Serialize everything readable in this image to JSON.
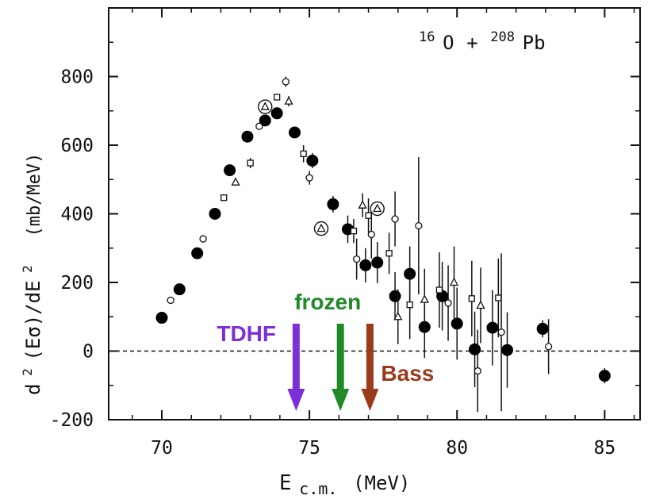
{
  "chart_data": {
    "type": "scatter",
    "title": "",
    "reaction": {
      "projectile_mass": "16",
      "projectile_symbol": "O",
      "operator": "+",
      "target_mass": "208",
      "target_symbol": "Pb"
    },
    "xlabel": {
      "main": "E",
      "subscript": "c.m.",
      "unit": "(MeV)"
    },
    "ylabel": {
      "main": "d",
      "sup1": "2",
      "mid": "(Eσ)/dE",
      "sup2": "2",
      "unit": "(mb/MeV)"
    },
    "xlim": [
      68.2,
      86.2
    ],
    "ylim": [
      -200,
      1000
    ],
    "xticks": [
      70,
      75,
      80,
      85
    ],
    "xtick_labels": [
      "70",
      "75",
      "80",
      "85"
    ],
    "yticks": [
      -200,
      0,
      200,
      400,
      600,
      800
    ],
    "ytick_labels": [
      "-200",
      "0",
      "200",
      "400",
      "600",
      "800"
    ],
    "zero_line": {
      "y": 0,
      "style": "dashed"
    },
    "series": [
      {
        "name": "filled circles",
        "marker": "filled-circle",
        "points": [
          {
            "x": 70.0,
            "y": 97,
            "err": 10
          },
          {
            "x": 70.6,
            "y": 180,
            "err": 10
          },
          {
            "x": 71.2,
            "y": 285,
            "err": 12
          },
          {
            "x": 71.8,
            "y": 400,
            "err": 12
          },
          {
            "x": 72.3,
            "y": 527,
            "err": 12
          },
          {
            "x": 72.9,
            "y": 625,
            "err": 14
          },
          {
            "x": 73.5,
            "y": 672,
            "err": 14
          },
          {
            "x": 73.9,
            "y": 693,
            "err": 14
          },
          {
            "x": 74.5,
            "y": 637,
            "err": 16
          },
          {
            "x": 75.1,
            "y": 555,
            "err": 22
          },
          {
            "x": 75.8,
            "y": 428,
            "err": 24
          },
          {
            "x": 76.3,
            "y": 355,
            "err": 40
          },
          {
            "x": 76.9,
            "y": 250,
            "err": 50
          },
          {
            "x": 77.3,
            "y": 258,
            "err": 60
          },
          {
            "x": 77.9,
            "y": 160,
            "err": 70
          },
          {
            "x": 78.4,
            "y": 225,
            "err": 80
          },
          {
            "x": 78.9,
            "y": 70,
            "err": 90
          },
          {
            "x": 79.5,
            "y": 160,
            "err": 100
          },
          {
            "x": 80.0,
            "y": 80,
            "err": 105
          },
          {
            "x": 80.6,
            "y": 5,
            "err": 110
          },
          {
            "x": 81.2,
            "y": 68,
            "err": 110
          },
          {
            "x": 81.7,
            "y": 3,
            "err": 110
          },
          {
            "x": 82.9,
            "y": 65,
            "err": 25
          },
          {
            "x": 85.0,
            "y": -72,
            "err": 22
          }
        ]
      },
      {
        "name": "open circles",
        "marker": "open-circle",
        "points": [
          {
            "x": 70.3,
            "y": 148,
            "err": 0
          },
          {
            "x": 71.4,
            "y": 327,
            "err": 0
          },
          {
            "x": 73.3,
            "y": 655,
            "err": 0
          },
          {
            "x": 74.2,
            "y": 785,
            "err": 15
          },
          {
            "x": 75.0,
            "y": 505,
            "err": 20
          },
          {
            "x": 76.6,
            "y": 268,
            "err": 60
          },
          {
            "x": 77.1,
            "y": 340,
            "err": 70
          },
          {
            "x": 77.9,
            "y": 385,
            "err": 80
          },
          {
            "x": 78.7,
            "y": 365,
            "err": 200
          },
          {
            "x": 79.7,
            "y": 140,
            "err": 110
          },
          {
            "x": 80.7,
            "y": -58,
            "err": 120
          },
          {
            "x": 81.5,
            "y": 55,
            "err": 230
          },
          {
            "x": 83.1,
            "y": 13,
            "err": 80
          }
        ]
      },
      {
        "name": "open squares",
        "marker": "open-square",
        "points": [
          {
            "x": 72.1,
            "y": 447,
            "err": 0
          },
          {
            "x": 73.0,
            "y": 548,
            "err": 15
          },
          {
            "x": 73.9,
            "y": 740,
            "err": 0
          },
          {
            "x": 74.8,
            "y": 575,
            "err": 25
          },
          {
            "x": 76.5,
            "y": 350,
            "err": 35
          },
          {
            "x": 77.0,
            "y": 395,
            "err": 50
          },
          {
            "x": 77.7,
            "y": 285,
            "err": 60
          },
          {
            "x": 78.4,
            "y": 135,
            "err": 100
          },
          {
            "x": 79.4,
            "y": 178,
            "err": 110
          },
          {
            "x": 80.5,
            "y": 153,
            "err": 110
          },
          {
            "x": 81.4,
            "y": 155,
            "err": 115
          }
        ]
      },
      {
        "name": "open triangles",
        "marker": "open-triangle",
        "points": [
          {
            "x": 72.5,
            "y": 492,
            "err": 0
          },
          {
            "x": 74.3,
            "y": 728,
            "err": 15
          },
          {
            "x": 76.8,
            "y": 425,
            "err": 35
          },
          {
            "x": 78.0,
            "y": 100,
            "err": 80
          },
          {
            "x": 78.9,
            "y": 150,
            "err": 90
          },
          {
            "x": 79.9,
            "y": 200,
            "err": 105
          },
          {
            "x": 80.8,
            "y": 133,
            "err": 110
          }
        ]
      },
      {
        "name": "circled triangles",
        "marker": "circled-triangle",
        "points": [
          {
            "x": 73.5,
            "y": 712,
            "err": 0
          },
          {
            "x": 75.4,
            "y": 357,
            "err": 0
          },
          {
            "x": 77.3,
            "y": 415,
            "err": 0
          }
        ]
      }
    ],
    "annotations": [
      {
        "label": "TDHF",
        "x": 74.55,
        "color": "#7b2fd6"
      },
      {
        "label": "frozen",
        "x": 76.05,
        "color": "#1f8a26"
      },
      {
        "label": "Bass",
        "x": 77.05,
        "color": "#9a3b1c"
      }
    ]
  }
}
